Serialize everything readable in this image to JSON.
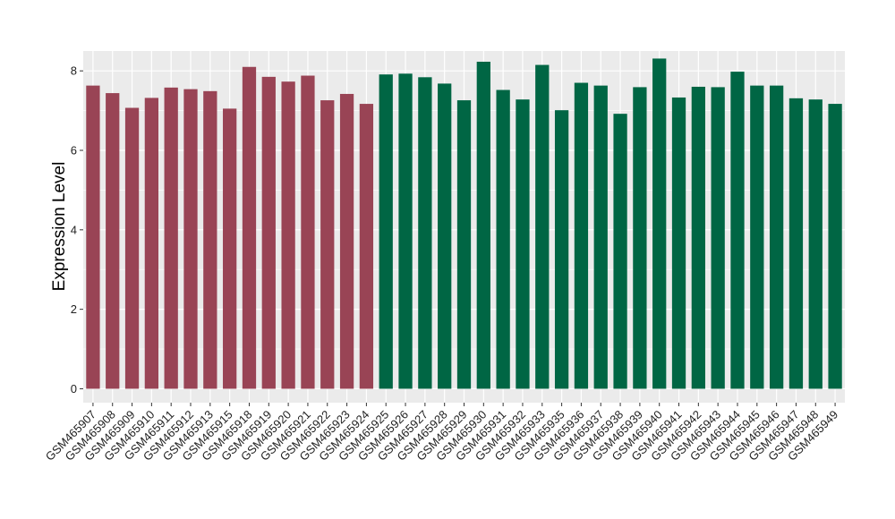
{
  "chart_data": {
    "type": "bar",
    "title": "",
    "xlabel": "",
    "ylabel": "Expression Level",
    "ylim": [
      -0.35,
      8.5
    ],
    "yticks": [
      0,
      2,
      4,
      6,
      8
    ],
    "grid": true,
    "legend": "none",
    "panel_background": "#EBEBEB",
    "grid_color": "#FFFFFF",
    "categories": [
      "GSM465907",
      "GSM465908",
      "GSM465909",
      "GSM465910",
      "GSM465911",
      "GSM465912",
      "GSM465913",
      "GSM465915",
      "GSM465918",
      "GSM465919",
      "GSM465920",
      "GSM465921",
      "GSM465922",
      "GSM465923",
      "GSM465924",
      "GSM465925",
      "GSM465926",
      "GSM465927",
      "GSM465928",
      "GSM465929",
      "GSM465930",
      "GSM465931",
      "GSM465932",
      "GSM465933",
      "GSM465935",
      "GSM465936",
      "GSM465937",
      "GSM465938",
      "GSM465939",
      "GSM465940",
      "GSM465941",
      "GSM465942",
      "GSM465943",
      "GSM465944",
      "GSM465945",
      "GSM465946",
      "GSM465947",
      "GSM465948",
      "GSM465949"
    ],
    "values": [
      7.63,
      7.44,
      7.07,
      7.32,
      7.58,
      7.54,
      7.49,
      7.05,
      8.1,
      7.85,
      7.73,
      7.88,
      7.26,
      7.42,
      7.17,
      7.91,
      7.93,
      7.84,
      7.68,
      7.26,
      8.23,
      7.52,
      7.28,
      8.15,
      7.01,
      7.7,
      7.63,
      6.92,
      7.59,
      8.31,
      7.33,
      7.6,
      7.59,
      7.98,
      7.63,
      7.63,
      7.31,
      7.28,
      7.17
    ],
    "group_sizes": [
      15,
      24
    ],
    "group_colors": [
      "#994455",
      "#006644"
    ]
  }
}
